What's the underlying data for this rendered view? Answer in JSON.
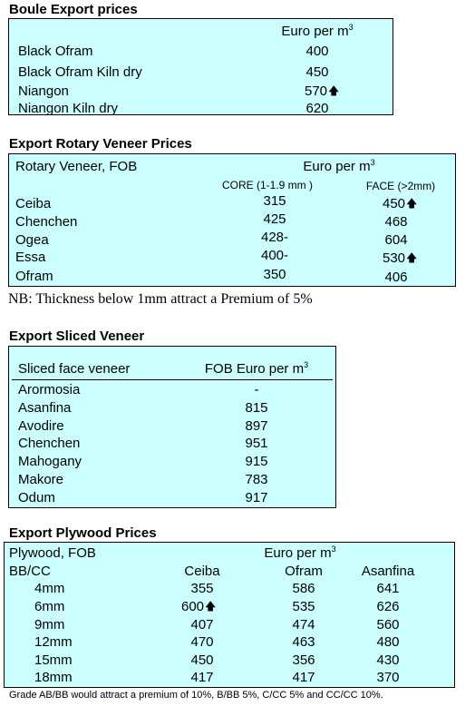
{
  "boule": {
    "title": "Boule Export prices",
    "unit": "Euro per m",
    "unit_sup": "3",
    "rows": [
      {
        "name": "Black Ofram",
        "price": "400"
      },
      {
        "name": "Black Ofram  Kiln dry",
        "price": "450"
      },
      {
        "name": "Niangon",
        "price": "570"
      },
      {
        "name": "Niangon Kiln dry",
        "price": "620"
      }
    ]
  },
  "rotary": {
    "title": "Export Rotary Veneer Prices",
    "header": "Rotary Veneer,  FOB",
    "unit": "Euro  per m",
    "unit_sup": "3",
    "core_header": "CORE (1-1.9 mm )",
    "face_header": "FACE (>2mm)",
    "rows": [
      {
        "name": "Ceiba",
        "core": "315",
        "face": "450"
      },
      {
        "name": "Chenchen",
        "core": "425",
        "face": "468"
      },
      {
        "name": "Ogea",
        "core": "428-",
        "face": "604"
      },
      {
        "name": "Essa",
        "core": "400-",
        "face": "530"
      },
      {
        "name": "Ofram",
        "core": "350",
        "face": "406"
      }
    ],
    "note": "NB: Thickness below 1mm attract a Premium of 5%"
  },
  "sliced": {
    "title": "Export Sliced Veneer",
    "col1": "Sliced face veneer",
    "col2": "FOB Euro per m",
    "col2_sup": "3",
    "rows": [
      {
        "name": "Arormosia",
        "price": "-"
      },
      {
        "name": "Asanfina",
        "price": "815"
      },
      {
        "name": "Avodire",
        "price": "897"
      },
      {
        "name": "Chenchen",
        "price": "951"
      },
      {
        "name": "Mahogany",
        "price": "915"
      },
      {
        "name": "Makore",
        "price": "783"
      },
      {
        "name": "Odum",
        "price": "917"
      }
    ]
  },
  "plywood": {
    "title": "Export Plywood Prices",
    "header": "Plywood, FOB",
    "unit": "Euro per m",
    "unit_sup": "3",
    "grade": "BB/CC",
    "cols": [
      "Ceiba",
      "Ofram",
      "Asanfina"
    ],
    "rows": [
      {
        "size": "4mm",
        "ceiba": "355",
        "ofram": "586",
        "asanfina": "641"
      },
      {
        "size": "6mm",
        "ceiba": "600",
        "ofram": "535",
        "asanfina": "626"
      },
      {
        "size": "9mm",
        "ceiba": "407",
        "ofram": "474",
        "asanfina": "560"
      },
      {
        "size": "12mm",
        "ceiba": "470",
        "ofram": "463",
        "asanfina": "480"
      },
      {
        "size": "15mm",
        "ceiba": "450",
        "ofram": "356",
        "asanfina": "430"
      },
      {
        "size": "18mm",
        "ceiba": "417",
        "ofram": "417",
        "asanfina": "370"
      }
    ],
    "note": "Grade AB/BB would attract a premium of 10%, B/BB 5%, C/CC 5% and CC/CC 10%."
  },
  "icons": {
    "up_arrow": "up-arrow-icon"
  }
}
